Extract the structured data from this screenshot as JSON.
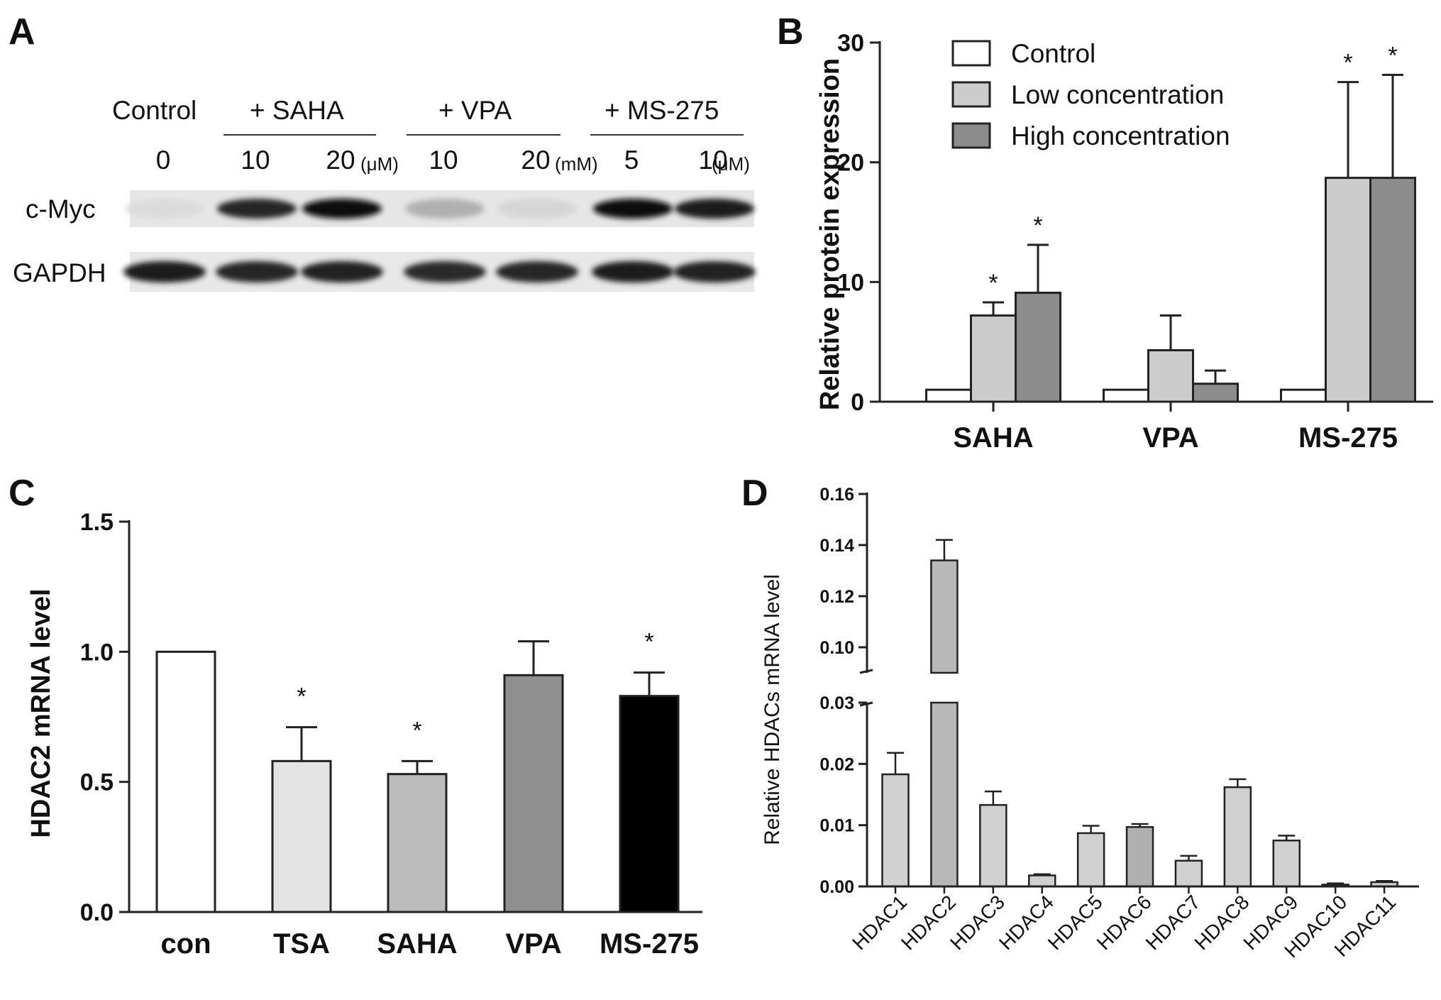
{
  "panels": {
    "a": "A",
    "b": "B",
    "c": "C",
    "d": "D"
  },
  "blot": {
    "group_labels": [
      "Control",
      "+ SAHA",
      "+ VPA",
      "+ MS-275"
    ],
    "doses": [
      "0",
      "10",
      "20",
      "10",
      "20",
      "5",
      "10"
    ],
    "units": [
      "(μM)",
      "(mM)",
      "(μM)"
    ],
    "row_labels": [
      "c-Myc",
      "GAPDH"
    ],
    "cmyc_intensity": [
      0.05,
      0.9,
      1.0,
      0.25,
      0.08,
      1.0,
      0.95
    ],
    "gapdh_intensity": [
      0.95,
      0.9,
      0.92,
      0.88,
      0.9,
      0.95,
      0.92
    ]
  },
  "chart_data": [
    {
      "type": "bar",
      "panel": "B",
      "categories": [
        "SAHA",
        "VPA",
        "MS-275"
      ],
      "series": [
        {
          "name": "Control",
          "values": [
            1,
            1,
            1
          ],
          "errors": [
            0,
            0,
            0
          ],
          "color": "#ffffff"
        },
        {
          "name": "Low concentration",
          "values": [
            7.2,
            4.3,
            18.7
          ],
          "errors": [
            1.1,
            2.9,
            8.0
          ],
          "color": "#cccccc"
        },
        {
          "name": "High concentration",
          "values": [
            9.1,
            1.5,
            18.7
          ],
          "errors": [
            4.0,
            1.1,
            8.6
          ],
          "color": "#8c8c8c"
        }
      ],
      "significance": [
        [
          "",
          "*",
          "*"
        ],
        [
          "",
          "",
          ""
        ],
        [
          "",
          "*",
          "*"
        ]
      ],
      "ylabel": "Relative protein expression",
      "ylim": [
        0,
        30
      ],
      "yticks": [
        "0",
        "10",
        "20",
        "30"
      ],
      "legend_position": "top-left"
    },
    {
      "type": "bar",
      "panel": "C",
      "categories": [
        "con",
        "TSA",
        "SAHA",
        "VPA",
        "MS-275"
      ],
      "values": [
        1.0,
        0.58,
        0.53,
        0.91,
        0.83
      ],
      "errors": [
        0,
        0.13,
        0.05,
        0.13,
        0.09
      ],
      "colors": [
        "#ffffff",
        "#e3e3e3",
        "#bbbbbb",
        "#8f8f8f",
        "#000000"
      ],
      "significance": [
        "",
        "*",
        "*",
        "",
        "*"
      ],
      "ylabel": "HDAC2 mRNA level",
      "ylim": [
        0,
        1.5
      ],
      "yticks": [
        "0.0",
        "0.5",
        "1.0",
        "1.5"
      ]
    },
    {
      "type": "bar",
      "panel": "D",
      "categories": [
        "HDAC1",
        "HDAC2",
        "HDAC3",
        "HDAC4",
        "HDAC5",
        "HDAC6",
        "HDAC7",
        "HDAC8",
        "HDAC9",
        "HDAC10",
        "HDAC11"
      ],
      "values": [
        0.0183,
        0.134,
        0.0133,
        0.0018,
        0.0087,
        0.0097,
        0.0042,
        0.0162,
        0.0075,
        0.0003,
        0.0007
      ],
      "errors": [
        0.0035,
        0.008,
        0.0022,
        0.0002,
        0.0012,
        0.0005,
        0.0008,
        0.0013,
        0.0008,
        0.0002,
        0.0002
      ],
      "colors": [
        "#d0d0d0",
        "#b8b8b8",
        "#d0d0d0",
        "#d0d0d0",
        "#d0d0d0",
        "#b0b0b0",
        "#d0d0d0",
        "#d0d0d0",
        "#d0d0d0",
        "#d0d0d0",
        "#d0d0d0"
      ],
      "ylabel": "Relative HDACs mRNA level",
      "broken_axis": {
        "lower_range": [
          0,
          0.03
        ],
        "upper_range": [
          0.09,
          0.16
        ]
      },
      "yticks_lower": [
        "0.00",
        "0.01",
        "0.02",
        "0.03"
      ],
      "yticks_upper": [
        "0.10",
        "0.12",
        "0.14",
        "0.16"
      ]
    }
  ]
}
